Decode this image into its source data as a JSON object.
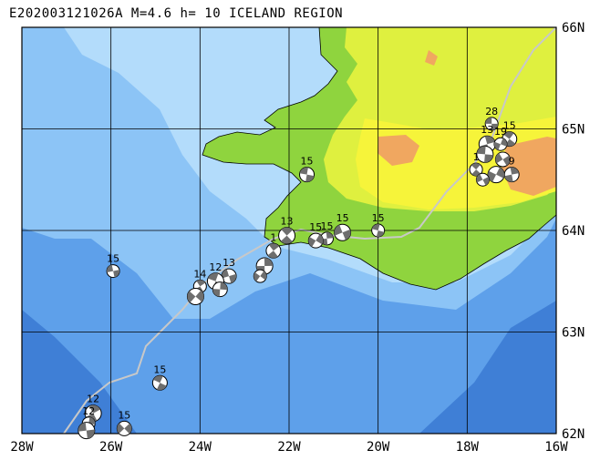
{
  "map": {
    "title": "E202003121026A M=4.6 h= 10 ICELAND REGION",
    "lon_labels": [
      "28W",
      "26W",
      "24W",
      "22W",
      "20W",
      "18W",
      "16W"
    ],
    "lat_labels": [
      "62N",
      "63N",
      "64N",
      "65N",
      "66N"
    ],
    "extent": {
      "lon_min": -28,
      "lon_max": -16,
      "lat_min": 62,
      "lat_max": 66
    },
    "colors": {
      "deep_ocean": "#3f7fd6",
      "mid_ocean": "#5ea0ea",
      "shelf": "#8cc4f6",
      "shallow": "#b3dcfb",
      "lowland": "#8fd43e",
      "highland": "#dff03f",
      "plateau": "#f6f43a",
      "peaks": "#f0a760",
      "ridge": "#c8c8c8",
      "grid": "#000000"
    }
  },
  "events": [
    {
      "lon": -17.45,
      "lat": 65.05,
      "label": "28"
    },
    {
      "lon": -17.05,
      "lat": 64.9,
      "label": "15"
    },
    {
      "lon": -17.55,
      "lat": 64.85,
      "label": "13"
    },
    {
      "lon": -17.25,
      "lat": 64.85,
      "label": "19"
    },
    {
      "lon": -17.2,
      "lat": 64.7,
      "label": ""
    },
    {
      "lon": -17.6,
      "lat": 64.75,
      "label": ""
    },
    {
      "lon": -17.8,
      "lat": 64.6,
      "label": "1"
    },
    {
      "lon": -17.0,
      "lat": 64.55,
      "label": "9"
    },
    {
      "lon": -17.35,
      "lat": 64.55,
      "label": ""
    },
    {
      "lon": -17.65,
      "lat": 64.5,
      "label": ""
    },
    {
      "lon": -21.6,
      "lat": 64.55,
      "label": "15"
    },
    {
      "lon": -22.05,
      "lat": 63.95,
      "label": "13"
    },
    {
      "lon": -21.15,
      "lat": 63.92,
      "label": "15"
    },
    {
      "lon": -21.4,
      "lat": 63.9,
      "label": "15"
    },
    {
      "lon": -20.8,
      "lat": 63.98,
      "label": "15"
    },
    {
      "lon": -20.0,
      "lat": 64.0,
      "label": "15"
    },
    {
      "lon": -22.35,
      "lat": 63.8,
      "label": "1"
    },
    {
      "lon": -22.55,
      "lat": 63.65,
      "label": ""
    },
    {
      "lon": -22.65,
      "lat": 63.55,
      "label": ""
    },
    {
      "lon": -23.35,
      "lat": 63.55,
      "label": "13"
    },
    {
      "lon": -23.65,
      "lat": 63.5,
      "label": "12"
    },
    {
      "lon": -24.0,
      "lat": 63.45,
      "label": "14"
    },
    {
      "lon": -23.55,
      "lat": 63.42,
      "label": ""
    },
    {
      "lon": -24.1,
      "lat": 63.35,
      "label": ""
    },
    {
      "lon": -25.95,
      "lat": 63.6,
      "label": "15"
    },
    {
      "lon": -24.9,
      "lat": 62.5,
      "label": "15"
    },
    {
      "lon": -26.4,
      "lat": 62.2,
      "label": "12"
    },
    {
      "lon": -26.5,
      "lat": 62.1,
      "label": "12"
    },
    {
      "lon": -25.7,
      "lat": 62.05,
      "label": "15"
    },
    {
      "lon": -26.55,
      "lat": 62.03,
      "label": ""
    }
  ]
}
